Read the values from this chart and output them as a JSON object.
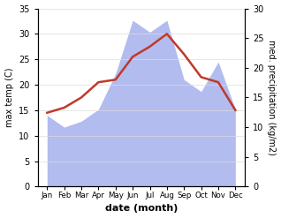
{
  "months": [
    "Jan",
    "Feb",
    "Mar",
    "Apr",
    "May",
    "Jun",
    "Jul",
    "Aug",
    "Sep",
    "Oct",
    "Nov",
    "Dec"
  ],
  "temp": [
    14.5,
    15.5,
    17.5,
    20.5,
    21.0,
    25.5,
    27.5,
    30.0,
    26.0,
    21.5,
    20.5,
    15.0
  ],
  "precip": [
    12,
    10,
    11,
    13,
    19,
    28,
    26,
    28,
    18,
    16,
    21,
    13
  ],
  "temp_color": "#c0392b",
  "precip_color": "#b3bcee",
  "left_ylabel": "max temp (C)",
  "right_ylabel": "med. precipitation (kg/m2)",
  "xlabel": "date (month)",
  "ylim_left": [
    0,
    35
  ],
  "ylim_right": [
    0,
    30
  ],
  "yticks_left": [
    0,
    5,
    10,
    15,
    20,
    25,
    30,
    35
  ],
  "yticks_right": [
    0,
    5,
    10,
    15,
    20,
    25,
    30
  ],
  "temp_linewidth": 1.8,
  "grid_color": "#dddddd"
}
